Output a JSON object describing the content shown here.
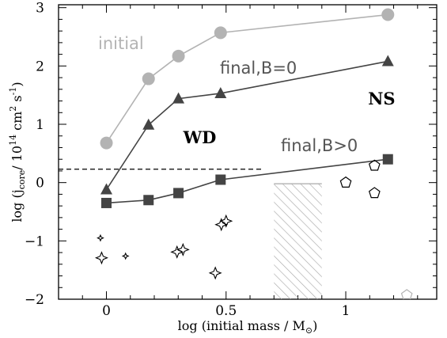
{
  "chart_data": {
    "type": "scatter",
    "xlabel": "log (initial mass / M",
    "xlabel_sub": "⊙",
    "xlabel_end": ")",
    "ylabel_parts": [
      "log (j",
      "core",
      "/ 10",
      "14",
      " cm",
      "2",
      " s",
      "-1",
      ")"
    ],
    "xlim": [
      -0.2,
      1.38
    ],
    "ylim": [
      -2,
      3.05
    ],
    "x_ticks": [
      0,
      0.5,
      1
    ],
    "x_tick_labels": [
      "0",
      "0.5",
      "1"
    ],
    "y_ticks": [
      -2,
      -1,
      0,
      1,
      2,
      3
    ],
    "y_tick_labels": [
      "−2",
      "−1",
      "0",
      "1",
      "2",
      "3"
    ],
    "grid": false,
    "series": [
      {
        "label": "initial",
        "color": "#b3b3b3",
        "marker": "circle",
        "x": [
          0.0,
          0.176,
          0.301,
          0.477,
          1.176
        ],
        "y": [
          0.68,
          1.78,
          2.17,
          2.57,
          2.88
        ]
      },
      {
        "label": "final,B=0",
        "color": "#444444",
        "marker": "triangle",
        "x": [
          0.0,
          0.176,
          0.301,
          0.477,
          1.176
        ],
        "y": [
          -0.12,
          0.99,
          1.44,
          1.53,
          2.08
        ]
      },
      {
        "label": "final,B>0",
        "color": "#444444",
        "marker": "square",
        "x": [
          0.0,
          0.176,
          0.301,
          0.477,
          1.176
        ],
        "y": [
          -0.35,
          -0.3,
          -0.18,
          0.05,
          0.4
        ]
      }
    ],
    "wd_stars_large": {
      "x": [
        -0.02,
        0.295,
        0.32,
        0.455,
        0.48,
        0.5
      ],
      "y": [
        -1.29,
        -1.19,
        -1.15,
        -1.55,
        -0.72,
        -0.66
      ]
    },
    "wd_stars_small": {
      "x": [
        -0.025,
        0.08
      ],
      "y": [
        -0.95,
        -1.26
      ]
    },
    "ns_pentagons": {
      "x": [
        1.0,
        1.12,
        1.12
      ],
      "y": [
        0.0,
        0.29,
        -0.18
      ]
    },
    "gray_pentagon": {
      "x": 1.255,
      "y": -1.93
    },
    "dashed_line": {
      "x": [
        -0.2,
        0.65
      ],
      "y": [
        0.23,
        0.23
      ]
    },
    "hatched_region": {
      "x": [
        0.7,
        0.9
      ],
      "y": [
        -2,
        -0.02
      ]
    },
    "annotations": [
      {
        "text": "WD",
        "x": 0.39,
        "y": 0.78
      },
      {
        "text": "NS",
        "x": 1.15,
        "y": 1.45
      }
    ]
  }
}
